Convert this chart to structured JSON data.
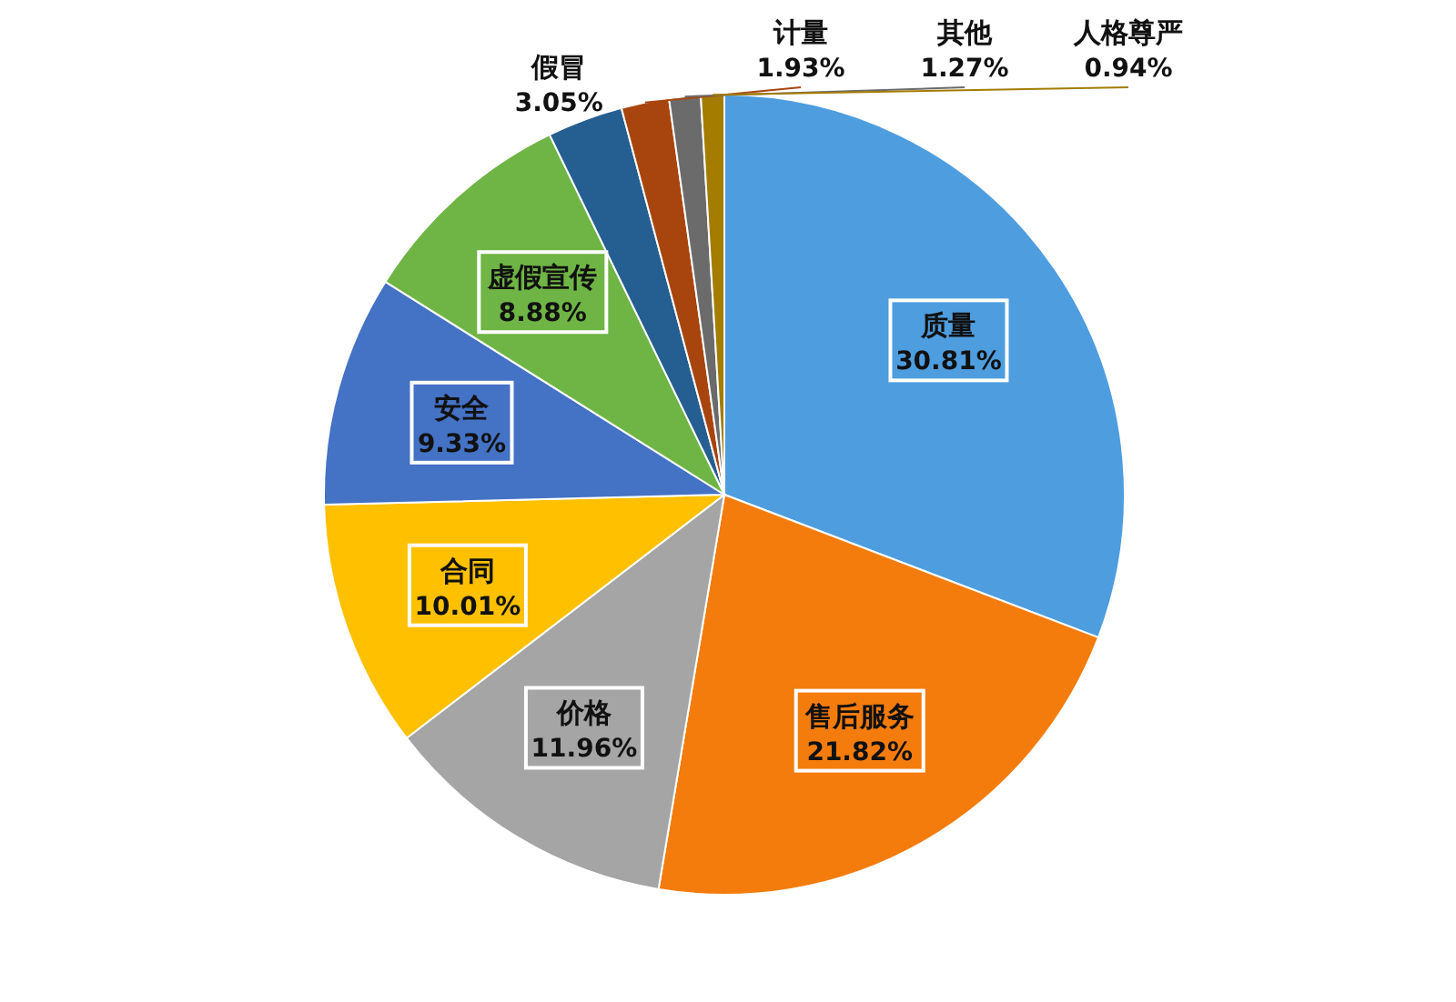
{
  "chart_data": {
    "type": "pie",
    "categories": [
      "质量",
      "售后服务",
      "价格",
      "合同",
      "安全",
      "虚假宣传",
      "假冒",
      "计量",
      "其他",
      "人格尊严"
    ],
    "values": [
      30.81,
      21.82,
      11.96,
      10.01,
      9.33,
      8.88,
      3.05,
      1.93,
      1.27,
      0.94
    ],
    "colors": [
      "#4e9ddf",
      "#f47c0c",
      "#a5a5a5",
      "#ffc000",
      "#4472c4",
      "#6fb545",
      "#255e91",
      "#a8450e",
      "#6b6b6b",
      "#a47c00"
    ],
    "value_labels": [
      "30.81%",
      "21.82%",
      "11.96%",
      "10.01%",
      "9.33%",
      "8.88%",
      "3.05%",
      "1.93%",
      "1.27%",
      "0.94%"
    ]
  }
}
